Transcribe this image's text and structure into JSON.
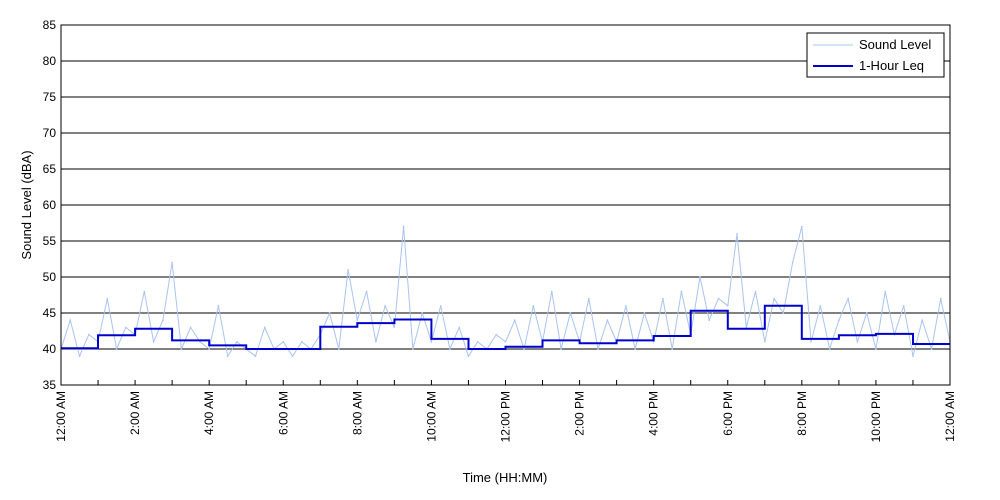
{
  "chart_data": {
    "type": "line",
    "title": "",
    "xlabel": "Time (HH:MM)",
    "ylabel": "Sound Level (dBA)",
    "ylim": [
      35,
      85
    ],
    "xlim_hours": [
      0,
      24
    ],
    "y_ticks": [
      35,
      40,
      45,
      50,
      55,
      60,
      65,
      70,
      75,
      80,
      85
    ],
    "x_ticks": [
      {
        "hour": 0,
        "label": "12:00 AM"
      },
      {
        "hour": 2,
        "label": "2:00 AM"
      },
      {
        "hour": 4,
        "label": "4:00 AM"
      },
      {
        "hour": 6,
        "label": "6:00 AM"
      },
      {
        "hour": 8,
        "label": "8:00 AM"
      },
      {
        "hour": 10,
        "label": "10:00 AM"
      },
      {
        "hour": 12,
        "label": "12:00 PM"
      },
      {
        "hour": 14,
        "label": "2:00 PM"
      },
      {
        "hour": 16,
        "label": "4:00 PM"
      },
      {
        "hour": 18,
        "label": "6:00 PM"
      },
      {
        "hour": 20,
        "label": "8:00 PM"
      },
      {
        "hour": 22,
        "label": "10:00 PM"
      },
      {
        "hour": 24,
        "label": "12:00 AM"
      }
    ],
    "grid": "horizontal",
    "legend_position": "top-right",
    "series": [
      {
        "name": "Sound Level",
        "color": "#a9c4f0",
        "style": "thin-line",
        "x_hours": [
          0.0,
          0.25,
          0.5,
          0.75,
          1.0,
          1.25,
          1.5,
          1.75,
          2.0,
          2.25,
          2.5,
          2.75,
          3.0,
          3.25,
          3.5,
          3.75,
          4.0,
          4.25,
          4.5,
          4.75,
          5.0,
          5.25,
          5.5,
          5.75,
          6.0,
          6.25,
          6.5,
          6.75,
          7.0,
          7.25,
          7.5,
          7.75,
          8.0,
          8.25,
          8.5,
          8.75,
          9.0,
          9.25,
          9.5,
          9.75,
          10.0,
          10.25,
          10.5,
          10.75,
          11.0,
          11.25,
          11.5,
          11.75,
          12.0,
          12.25,
          12.5,
          12.75,
          13.0,
          13.25,
          13.5,
          13.75,
          14.0,
          14.25,
          14.5,
          14.75,
          15.0,
          15.25,
          15.5,
          15.75,
          16.0,
          16.25,
          16.5,
          16.75,
          17.0,
          17.25,
          17.5,
          17.75,
          18.0,
          18.25,
          18.5,
          18.75,
          19.0,
          19.25,
          19.5,
          19.75,
          20.0,
          20.25,
          20.5,
          20.75,
          21.0,
          21.25,
          21.5,
          21.75,
          22.0,
          22.25,
          22.5,
          22.75,
          23.0,
          23.25,
          23.5,
          23.75,
          24.0
        ],
        "values": [
          40,
          44,
          39,
          42,
          41,
          47,
          40,
          43,
          42,
          48,
          41,
          44,
          52,
          40,
          43,
          41,
          40,
          46,
          39,
          41,
          40,
          39,
          43,
          40,
          41,
          39,
          41,
          40,
          42,
          45,
          40,
          51,
          44,
          48,
          41,
          46,
          43,
          57,
          40,
          45,
          41,
          46,
          40,
          43,
          39,
          41,
          40,
          42,
          41,
          44,
          40,
          46,
          41,
          48,
          40,
          45,
          41,
          47,
          40,
          44,
          41,
          46,
          40,
          45,
          41,
          47,
          40,
          48,
          42,
          50,
          44,
          47,
          46,
          56,
          43,
          48,
          41,
          47,
          45,
          52,
          57,
          41,
          46,
          40,
          44,
          47,
          41,
          45,
          40,
          48,
          42,
          46,
          39,
          44,
          40,
          47,
          41
        ]
      },
      {
        "name": "1-Hour Leq",
        "color": "#0000cc",
        "style": "step",
        "hourly_values": [
          40.1,
          41.9,
          42.8,
          41.2,
          40.5,
          40.0,
          40.0,
          43.1,
          43.6,
          44.1,
          41.4,
          40.0,
          40.3,
          41.2,
          40.8,
          41.2,
          41.8,
          45.3,
          42.8,
          46.0,
          41.4,
          41.9,
          42.1,
          40.7
        ]
      }
    ]
  }
}
